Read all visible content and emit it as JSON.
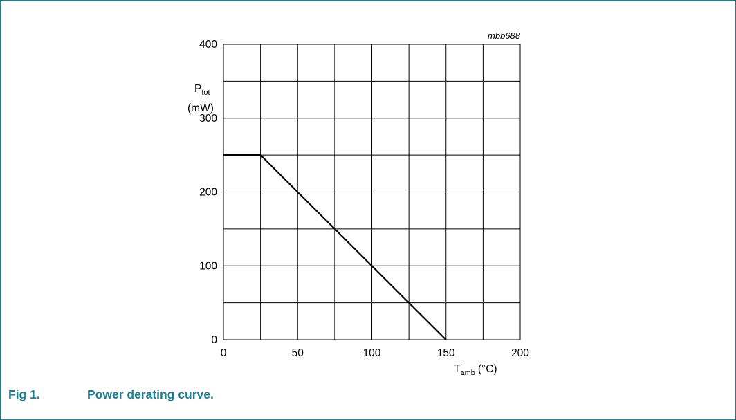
{
  "figure": {
    "number": "Fig 1.",
    "caption": "Power derating curve.",
    "code": "mbb688",
    "accent_color": "#1a7f93"
  },
  "chart_data": {
    "type": "line",
    "title": "",
    "ylabel": {
      "main": "P",
      "sub": "tot",
      "unit": "(mW)"
    },
    "xlabel": {
      "main": "T",
      "sub": "amb",
      "unit": "(°C)"
    },
    "xlim": [
      0,
      200
    ],
    "ylim": [
      0,
      400
    ],
    "x_ticks": [
      0,
      50,
      100,
      150,
      200
    ],
    "y_ticks": [
      0,
      100,
      200,
      300,
      400
    ],
    "x_grid_step": 25,
    "y_grid_step": 50,
    "grid": true,
    "series": [
      {
        "x": [
          0,
          25,
          150
        ],
        "y": [
          250,
          250,
          0
        ]
      }
    ]
  }
}
